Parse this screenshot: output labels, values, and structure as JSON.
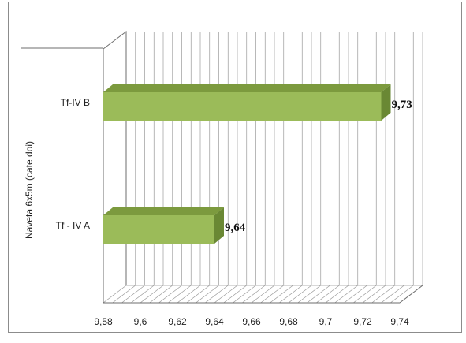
{
  "chart_data": {
    "type": "bar",
    "orientation": "horizontal",
    "style": "3d",
    "categories": [
      "Tf-IV B",
      "Tf - IV A"
    ],
    "values": [
      9.73,
      9.64
    ],
    "data_labels": [
      "9,73",
      "9,64"
    ],
    "ylabel": "Naveta 6x5m (cate doi)",
    "xlim": [
      9.58,
      9.74
    ],
    "ticks": [
      "9,58",
      "9,6",
      "9,62",
      "9,64",
      "9,66",
      "9,68",
      "9,7",
      "9,72",
      "9,74"
    ],
    "tick_values": [
      9.58,
      9.6,
      9.62,
      9.64,
      9.66,
      9.68,
      9.7,
      9.72,
      9.74
    ],
    "minor_grid_step": 0.005,
    "grid": true,
    "legend": "none",
    "colors": {
      "bar_front": "#9bbb59",
      "bar_top": "#7c9a3e",
      "bar_side": "#6a8834",
      "grid": "#9a9a9a",
      "axis": "#6e6e6e"
    }
  }
}
